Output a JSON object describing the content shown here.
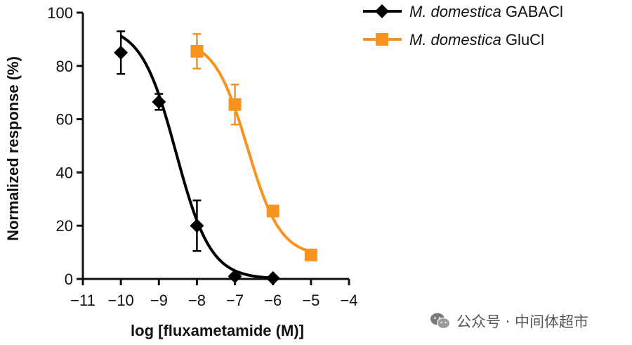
{
  "chart_data": {
    "type": "line",
    "title": "",
    "xlabel": "log [fluxametamide (M)]",
    "ylabel": "Normalized response (%)",
    "xlim": [
      -11,
      -4
    ],
    "ylim": [
      0,
      100
    ],
    "x_ticks": [
      -11,
      -10,
      -9,
      -8,
      -7,
      -6,
      -5,
      -4
    ],
    "y_ticks": [
      0,
      20,
      40,
      60,
      80,
      100
    ],
    "legend_placement": "top-right",
    "series": [
      {
        "name_italic": "M. domestica",
        "name_suffix": "GABACl",
        "color": "#000000",
        "marker": "diamond",
        "x": [
          -10,
          -9,
          -8,
          -7,
          -6
        ],
        "y": [
          85,
          66.5,
          20,
          1,
          0.3
        ],
        "error": [
          8,
          3,
          9.5,
          0,
          0
        ],
        "fit": {
          "top": 95,
          "bottom": 0,
          "logIC50": -8.55,
          "hill": 0.95,
          "x_range": [
            -10,
            -6
          ]
        }
      },
      {
        "name_italic": "M. domestica",
        "name_suffix": "GluCl",
        "color": "#f7931e",
        "marker": "square",
        "x": [
          -8,
          -7,
          -6,
          -5
        ],
        "y": [
          85.5,
          65.5,
          25.5,
          9
        ],
        "error": [
          6.5,
          7.5,
          0,
          0
        ],
        "fit": {
          "top": 90,
          "bottom": 8.5,
          "logIC50": -6.67,
          "hill": 1.0,
          "x_range": [
            -8,
            -5
          ]
        }
      }
    ]
  },
  "watermark": {
    "text": "公众号 · 中间体超市",
    "icon": "wechat-icon"
  }
}
